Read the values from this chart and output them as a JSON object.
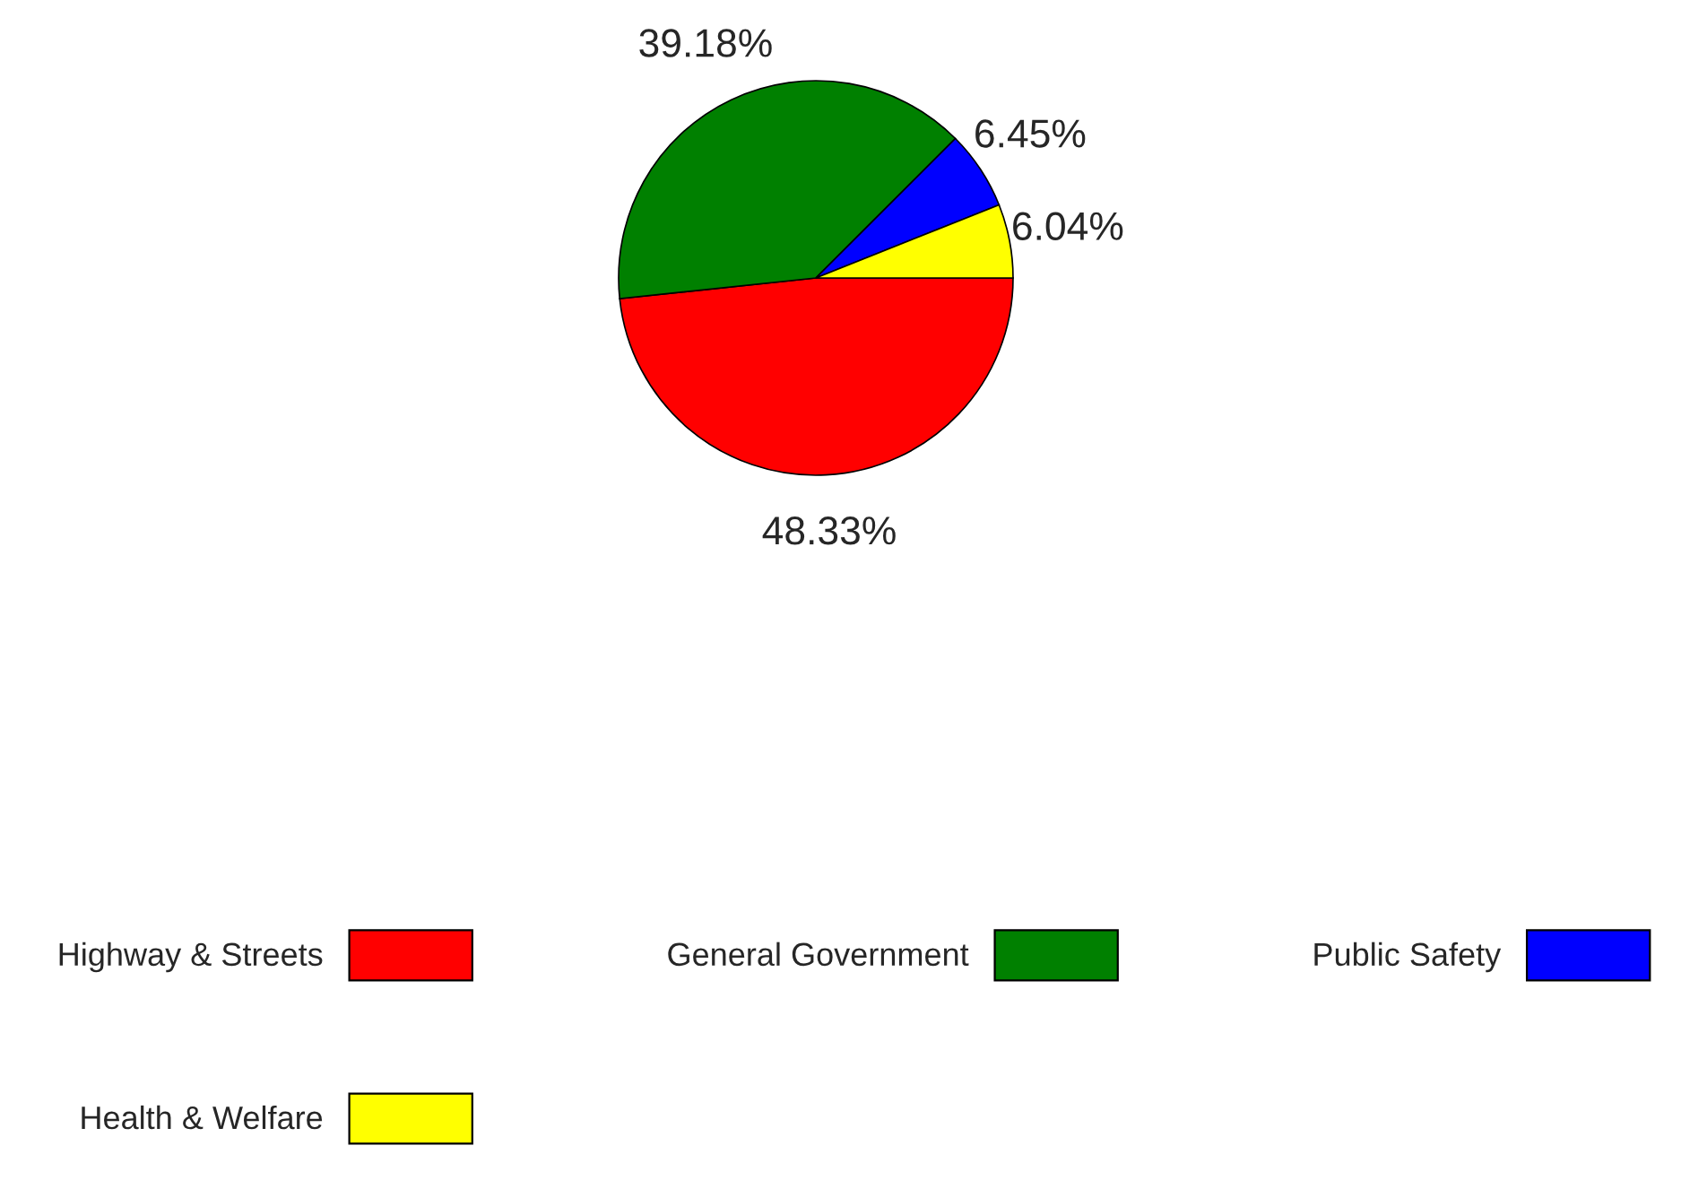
{
  "chart_data": {
    "type": "pie",
    "categories": [
      "Highway & Streets",
      "General Government",
      "Public Safety",
      "Health & Welfare"
    ],
    "values": [
      48.33,
      39.18,
      6.45,
      6.04
    ],
    "colors": [
      "#ff0000",
      "#008000",
      "#0000ff",
      "#ffff00"
    ],
    "value_labels": [
      "48.33%",
      "39.18%",
      "6.45%",
      "6.04%"
    ],
    "legend": "bottom"
  }
}
